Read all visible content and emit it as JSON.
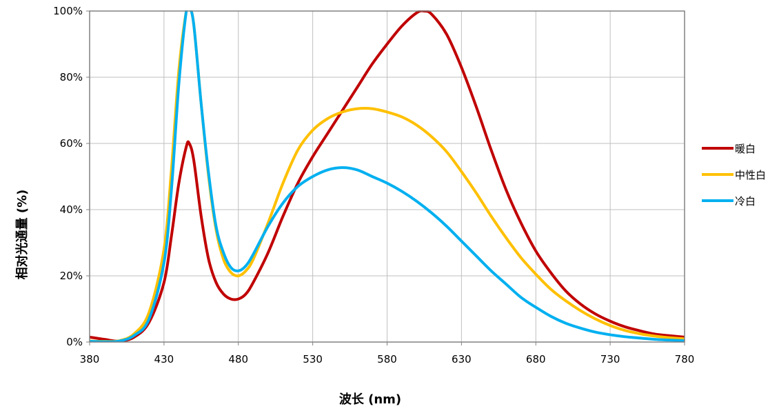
{
  "chart_data": {
    "type": "line",
    "xlabel": "波长 (nm)",
    "ylabel": "相对光通量 (%)",
    "xlim": [
      380,
      780
    ],
    "ylim": [
      0,
      100
    ],
    "xticks": [
      "380",
      "430",
      "480",
      "530",
      "580",
      "630",
      "680",
      "730",
      "780"
    ],
    "yticks": [
      "0%",
      "20%",
      "40%",
      "60%",
      "80%",
      "100%"
    ],
    "grid": true,
    "legend_position": "right",
    "series": [
      {
        "name": "暖白",
        "color": "#c00000",
        "points": [
          [
            380,
            1.5
          ],
          [
            390,
            0.8
          ],
          [
            400,
            0.3
          ],
          [
            410,
            1.5
          ],
          [
            420,
            6
          ],
          [
            430,
            18
          ],
          [
            435,
            32
          ],
          [
            440,
            48
          ],
          [
            445,
            59
          ],
          [
            447,
            60
          ],
          [
            450,
            55
          ],
          [
            455,
            38
          ],
          [
            460,
            25
          ],
          [
            465,
            18
          ],
          [
            470,
            14.5
          ],
          [
            475,
            13
          ],
          [
            480,
            13
          ],
          [
            485,
            14.5
          ],
          [
            490,
            18
          ],
          [
            500,
            27
          ],
          [
            510,
            38
          ],
          [
            520,
            48
          ],
          [
            530,
            56
          ],
          [
            540,
            63
          ],
          [
            550,
            70
          ],
          [
            560,
            77
          ],
          [
            570,
            84
          ],
          [
            580,
            90
          ],
          [
            590,
            95.5
          ],
          [
            600,
            99.5
          ],
          [
            605,
            100
          ],
          [
            610,
            99
          ],
          [
            620,
            93
          ],
          [
            630,
            83
          ],
          [
            640,
            71
          ],
          [
            650,
            58
          ],
          [
            660,
            46
          ],
          [
            670,
            36
          ],
          [
            680,
            27.5
          ],
          [
            690,
            21
          ],
          [
            700,
            15.5
          ],
          [
            710,
            11.5
          ],
          [
            720,
            8.5
          ],
          [
            730,
            6.3
          ],
          [
            740,
            4.6
          ],
          [
            750,
            3.4
          ],
          [
            760,
            2.4
          ],
          [
            770,
            1.9
          ],
          [
            780,
            1.5
          ]
        ]
      },
      {
        "name": "中性白",
        "color": "#ffc000",
        "points": [
          [
            380,
            0.3
          ],
          [
            390,
            0.2
          ],
          [
            400,
            0.4
          ],
          [
            410,
            2.5
          ],
          [
            420,
            9
          ],
          [
            430,
            28
          ],
          [
            435,
            52
          ],
          [
            440,
            82
          ],
          [
            445,
            100
          ],
          [
            447,
            101
          ],
          [
            450,
            96
          ],
          [
            455,
            72
          ],
          [
            460,
            50
          ],
          [
            465,
            34
          ],
          [
            470,
            25
          ],
          [
            475,
            21
          ],
          [
            480,
            20
          ],
          [
            485,
            21.5
          ],
          [
            490,
            25
          ],
          [
            500,
            36
          ],
          [
            510,
            48
          ],
          [
            520,
            58
          ],
          [
            530,
            64
          ],
          [
            540,
            67.5
          ],
          [
            550,
            69.5
          ],
          [
            560,
            70.5
          ],
          [
            570,
            70.5
          ],
          [
            580,
            69.5
          ],
          [
            590,
            68
          ],
          [
            600,
            65.5
          ],
          [
            610,
            62
          ],
          [
            620,
            57.5
          ],
          [
            630,
            51.5
          ],
          [
            640,
            45
          ],
          [
            650,
            38
          ],
          [
            660,
            31.5
          ],
          [
            670,
            25.5
          ],
          [
            680,
            20.5
          ],
          [
            690,
            16
          ],
          [
            700,
            12.5
          ],
          [
            710,
            9.5
          ],
          [
            720,
            7
          ],
          [
            730,
            5
          ],
          [
            740,
            3.5
          ],
          [
            750,
            2.5
          ],
          [
            760,
            1.8
          ],
          [
            770,
            1.3
          ],
          [
            780,
            1
          ]
        ]
      },
      {
        "name": "冷白",
        "color": "#00b0f0",
        "points": [
          [
            380,
            0.2
          ],
          [
            390,
            0.1
          ],
          [
            400,
            0.3
          ],
          [
            410,
            2
          ],
          [
            420,
            7
          ],
          [
            430,
            24
          ],
          [
            435,
            46
          ],
          [
            440,
            78
          ],
          [
            445,
            100
          ],
          [
            447,
            101
          ],
          [
            450,
            96
          ],
          [
            455,
            72
          ],
          [
            460,
            51
          ],
          [
            465,
            35
          ],
          [
            470,
            27
          ],
          [
            475,
            22.5
          ],
          [
            480,
            21.5
          ],
          [
            485,
            23
          ],
          [
            490,
            26.5
          ],
          [
            500,
            35
          ],
          [
            510,
            42
          ],
          [
            520,
            47
          ],
          [
            530,
            50
          ],
          [
            540,
            52
          ],
          [
            550,
            52.7
          ],
          [
            560,
            52
          ],
          [
            570,
            50
          ],
          [
            580,
            48
          ],
          [
            590,
            45.5
          ],
          [
            600,
            42.5
          ],
          [
            610,
            39
          ],
          [
            620,
            35
          ],
          [
            630,
            30.5
          ],
          [
            640,
            26
          ],
          [
            650,
            21.5
          ],
          [
            660,
            17.5
          ],
          [
            670,
            13.5
          ],
          [
            680,
            10.5
          ],
          [
            690,
            7.8
          ],
          [
            700,
            5.7
          ],
          [
            710,
            4.2
          ],
          [
            720,
            3
          ],
          [
            730,
            2.2
          ],
          [
            740,
            1.6
          ],
          [
            750,
            1.2
          ],
          [
            760,
            0.8
          ],
          [
            770,
            0.6
          ],
          [
            780,
            0.4
          ]
        ]
      }
    ]
  }
}
